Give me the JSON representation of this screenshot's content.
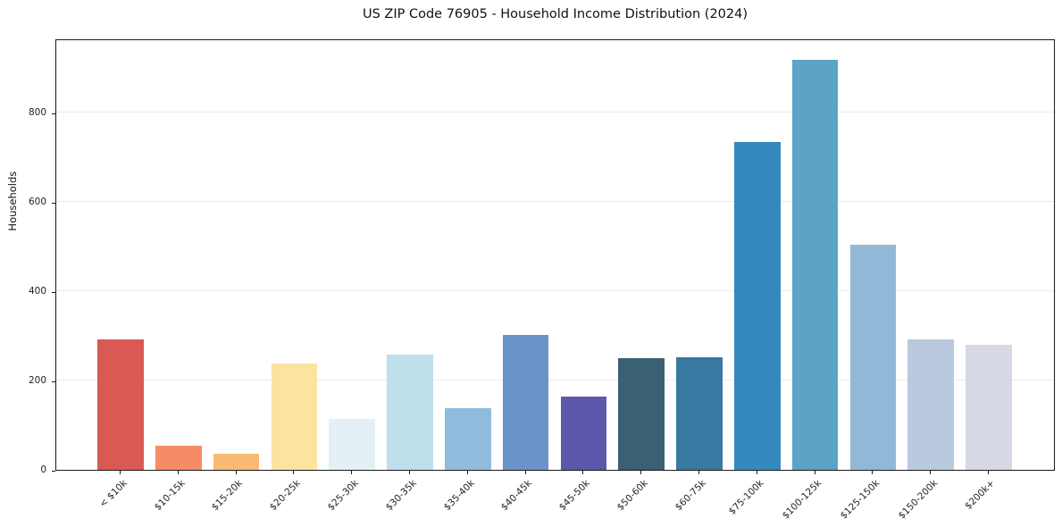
{
  "title": "US ZIP Code 76905 - Household Income Distribution (2024)",
  "chart_data": {
    "type": "bar",
    "title": "US ZIP Code 76905 - Household Income Distribution (2024)",
    "xlabel": "",
    "ylabel": "Households",
    "categories": [
      "< $10k",
      "$10-15k",
      "$15-20k",
      "$20-25k",
      "$25-30k",
      "$30-35k",
      "$35-40k",
      "$40-45k",
      "$45-50k",
      "$50-60k",
      "$60-75k",
      "$75-100k",
      "$100-125k",
      "$125-150k",
      "$150-200k",
      "$200k+"
    ],
    "values": [
      293,
      55,
      37,
      238,
      115,
      258,
      139,
      302,
      164,
      250,
      253,
      734,
      918,
      505,
      292,
      280
    ],
    "bar_colors": [
      "#d85a52",
      "#f68c66",
      "#f9bb71",
      "#fce49e",
      "#e3f1f7",
      "#bedfec",
      "#8fbcdc",
      "#6a93c8",
      "#5c58aa",
      "#3a6073",
      "#3779a1",
      "#3389bd",
      "#5ba3c7",
      "#92b8d8",
      "#b9c9de",
      "#d6d9e5"
    ],
    "yticks": [
      0,
      200,
      400,
      600,
      800
    ],
    "ylim": [
      0,
      966
    ],
    "grid": "horizontal-only",
    "grid_color": "#ebebeb",
    "spine_color": "#1a1a1a",
    "background_color": "#ffffff",
    "legend": "none"
  }
}
